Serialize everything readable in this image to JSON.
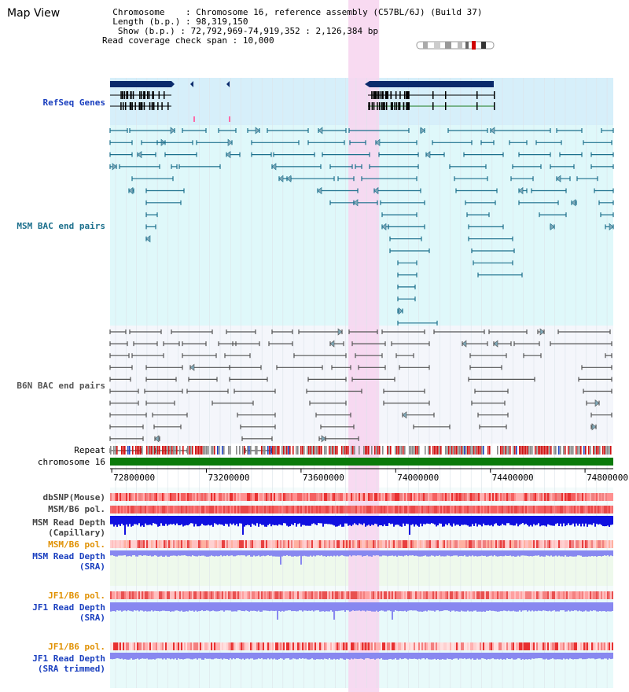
{
  "title": "Map View",
  "info": {
    "chromosome_label": "Chromosome",
    "chromosome_value": "Chromosome 16, reference assembly (C57BL/6J) (Build 37)",
    "length_label": "Length (b.p.)",
    "length_value": "98,319,150",
    "show_label": "Show (b.p.)",
    "show_value": "72,792,969-74,919,352 : 2,126,384 bp",
    "coverage_label": "Read coverage check span",
    "coverage_value": "10,000"
  },
  "tracks": {
    "refseq": "RefSeq Genes",
    "msm_bac": "MSM BAC end pairs",
    "b6n_bac": "B6N BAC end pairs",
    "repeat": "Repeat",
    "chromosome": "chromosome 16",
    "dbsnp": "dbSNP(Mouse)",
    "msm_b6_pol_1": "MSM/B6 pol.",
    "msm_read_depth_cap_1": "MSM Read Depth",
    "msm_read_depth_cap_2": "(Capillary)",
    "msm_b6_pol_2": "MSM/B6 pol.",
    "msm_read_depth_sra_1": "MSM Read Depth",
    "msm_read_depth_sra_2": "(SRA)",
    "jf1_b6_pol_1": "JF1/B6 pol.",
    "jf1_read_depth_sra_1": "JF1 Read Depth",
    "jf1_read_depth_sra_2": "(SRA)",
    "jf1_b6_pol_2": "JF1/B6 pol.",
    "jf1_read_depth_trim_1": "JF1 Read Depth",
    "jf1_read_depth_trim_2": "(SRA trimmed)"
  },
  "axis": {
    "ticks": [
      {
        "label": "72800000",
        "value": 72800000
      },
      {
        "label": "73200000",
        "value": 73200000
      },
      {
        "label": "73600000",
        "value": 73600000
      },
      {
        "label": "74000000",
        "value": 74000000
      },
      {
        "label": "74400000",
        "value": 74400000
      },
      {
        "label": "74800000",
        "value": 74800000
      }
    ],
    "range": [
      72792969,
      74919352
    ],
    "highlight": [
      73800000,
      73930000
    ]
  },
  "colors": {
    "highlight": "#f7d6f0",
    "refseq_bg": "#d6effa",
    "msm_bg": "#dff8fa",
    "b6n_bg": "#f4f6fb",
    "msm_feature": "#1b6f8c",
    "b6n_feature": "#555555",
    "gene": "#0a2a6b",
    "chromosome_bar": "#0a7a0a",
    "depth_dark": "#1010e0",
    "depth_light": "#8888f0"
  }
}
